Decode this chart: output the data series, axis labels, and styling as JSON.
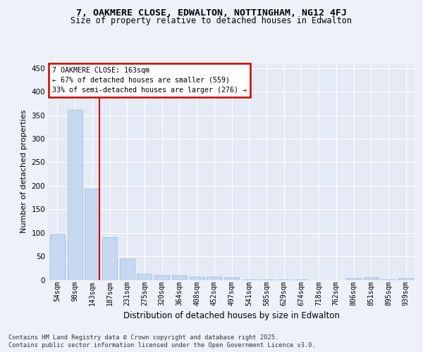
{
  "title_line1": "7, OAKMERE CLOSE, EDWALTON, NOTTINGHAM, NG12 4FJ",
  "title_line2": "Size of property relative to detached houses in Edwalton",
  "xlabel": "Distribution of detached houses by size in Edwalton",
  "ylabel": "Number of detached properties",
  "categories": [
    "54sqm",
    "98sqm",
    "143sqm",
    "187sqm",
    "231sqm",
    "275sqm",
    "320sqm",
    "364sqm",
    "408sqm",
    "452sqm",
    "497sqm",
    "541sqm",
    "585sqm",
    "629sqm",
    "674sqm",
    "718sqm",
    "762sqm",
    "806sqm",
    "851sqm",
    "895sqm",
    "939sqm"
  ],
  "values": [
    98,
    362,
    193,
    91,
    46,
    12,
    9,
    10,
    7,
    6,
    5,
    1,
    1,
    1,
    1,
    0,
    0,
    4,
    5,
    1,
    3
  ],
  "bar_color": "#c5d8f0",
  "bar_edge_color": "#a0b8d8",
  "red_line_x": 2.4,
  "annotation_title": "7 OAKMERE CLOSE: 163sqm",
  "annotation_line2": "← 67% of detached houses are smaller (559)",
  "annotation_line3": "33% of semi-detached houses are larger (276) →",
  "annotation_box_color": "#ffffff",
  "annotation_box_edge": "#cc0000",
  "footer_line1": "Contains HM Land Registry data © Crown copyright and database right 2025.",
  "footer_line2": "Contains public sector information licensed under the Open Government Licence v3.0.",
  "background_color": "#eef2f8",
  "plot_background": "#e4eaf6",
  "grid_color": "#ffffff",
  "ylim": [
    0,
    460
  ],
  "yticks": [
    0,
    50,
    100,
    150,
    200,
    250,
    300,
    350,
    400,
    450
  ]
}
